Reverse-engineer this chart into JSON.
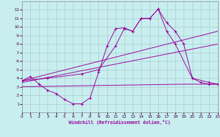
{
  "bg_color": "#c8eef0",
  "line_color": "#990099",
  "grid_color": "#aacccc",
  "xlabel": "Windchill (Refroidissement éolien,°C)",
  "xmin": 0,
  "xmax": 23,
  "ymin": 0,
  "ymax": 13,
  "line1_x": [
    0,
    1,
    2,
    3,
    4,
    5,
    6,
    7,
    8,
    9,
    10,
    11,
    12,
    13,
    14,
    15,
    16,
    17,
    18,
    19,
    20,
    21,
    22,
    23
  ],
  "line1_y": [
    3.7,
    4.2,
    3.3,
    2.6,
    2.2,
    1.5,
    1.0,
    1.0,
    1.7,
    4.7,
    7.8,
    9.8,
    9.9,
    9.5,
    11.0,
    11.0,
    12.1,
    10.5,
    9.5,
    8.0,
    4.0,
    3.5,
    3.3,
    3.3
  ],
  "line2_x": [
    0,
    3,
    7,
    9,
    11,
    12,
    13,
    14,
    15,
    16,
    17,
    18,
    20,
    22,
    23
  ],
  "line2_y": [
    3.7,
    4.0,
    4.5,
    5.0,
    7.8,
    9.8,
    9.5,
    11.0,
    11.0,
    12.1,
    9.5,
    8.0,
    4.0,
    3.5,
    3.3
  ],
  "line3_x": [
    0,
    23
  ],
  "line3_y": [
    3.7,
    9.5
  ],
  "line4_x": [
    0,
    23
  ],
  "line4_y": [
    3.5,
    8.0
  ],
  "line5_x": [
    0,
    19,
    23
  ],
  "line5_y": [
    3.0,
    3.3,
    3.3
  ],
  "xticks": [
    0,
    1,
    2,
    3,
    4,
    5,
    6,
    7,
    8,
    9,
    10,
    11,
    12,
    13,
    14,
    15,
    16,
    17,
    18,
    19,
    20,
    21,
    22,
    23
  ],
  "yticks": [
    1,
    2,
    3,
    4,
    5,
    6,
    7,
    8,
    9,
    10,
    11,
    12
  ]
}
